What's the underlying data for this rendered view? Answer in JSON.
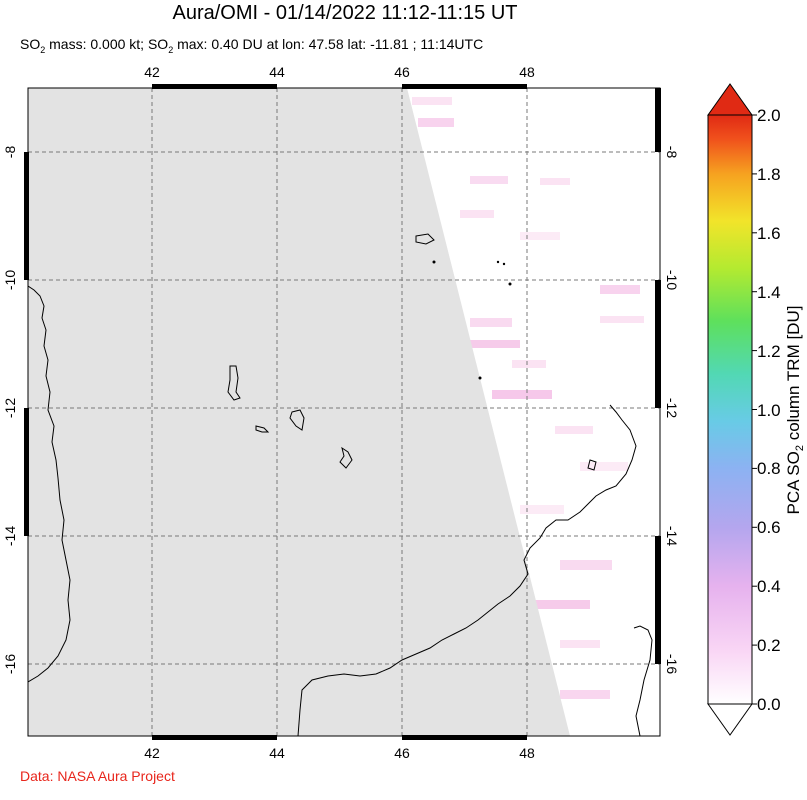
{
  "title": "Aura/OMI - 01/14/2022 11:12-11:15 UT",
  "subtitle": {
    "mass_prefix": "SO",
    "mass_sub": "2",
    "mass_text": " mass: 0.000 kt; SO",
    "max_sub": "2",
    "max_text": " max: 0.40 DU at lon: 47.58 lat: -11.81 ; 11:14UTC"
  },
  "credit": "Data: NASA Aura Project",
  "map": {
    "lon_ticks": [
      "42",
      "44",
      "46",
      "48"
    ],
    "lat_ticks": [
      "-8",
      "-10",
      "-12",
      "-14",
      "-16"
    ],
    "lon_range": [
      40.0,
      50.0
    ],
    "lat_range": [
      -17.0,
      -7.0
    ],
    "no_data_color": "#e3e3e3",
    "coast_color": "#000000",
    "grid": "dashed"
  },
  "colorbar": {
    "label_pre": "PCA SO",
    "label_sub": "2",
    "label_post": " column TRM [DU]",
    "ticks": [
      "0.0",
      "0.2",
      "0.4",
      "0.6",
      "0.8",
      "1.0",
      "1.2",
      "1.4",
      "1.6",
      "1.8",
      "2.0"
    ],
    "range": [
      0.0,
      2.0
    ],
    "colors": [
      "#ffffff",
      "#f7c9f2",
      "#c8a0e8",
      "#9aa8f0",
      "#69c8e8",
      "#53d8b0",
      "#5fe05a",
      "#b8ea32",
      "#f4e82a",
      "#f6a020",
      "#ef3a1c",
      "#d81e10"
    ]
  }
}
